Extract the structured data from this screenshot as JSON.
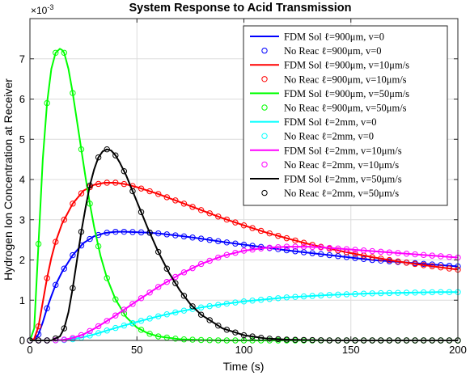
{
  "chart_data": {
    "type": "line",
    "title": "System Response to Acid Transmission",
    "xlabel": "Time (s)",
    "ylabel": "Hydrogen Ion Concentration at Receiver",
    "xlim": [
      0,
      200
    ],
    "ylim": [
      0,
      8
    ],
    "y_exponent_label": "×10",
    "y_exponent_power": "-3",
    "x_ticks": [
      "0",
      "50",
      "100",
      "150",
      "200"
    ],
    "y_ticks": [
      "0",
      "1",
      "2",
      "3",
      "4",
      "5",
      "6",
      "7"
    ],
    "grid": true,
    "legend_position": "top-right",
    "marker_step_s": 4,
    "series": [
      {
        "name": "FDM Sol ℓ=900μm, v=0",
        "marker_name": "No Reac ℓ=900μm, v=0",
        "color": "#0000ff",
        "x": [
          0,
          2,
          4,
          6,
          8,
          10,
          12,
          15,
          20,
          25,
          30,
          35,
          40,
          45,
          50,
          55,
          60,
          70,
          80,
          90,
          100,
          110,
          120,
          130,
          140,
          150,
          160,
          170,
          180,
          190,
          200
        ],
        "y": [
          0,
          0.02,
          0.15,
          0.45,
          0.8,
          1.1,
          1.38,
          1.7,
          2.12,
          2.42,
          2.59,
          2.67,
          2.7,
          2.7,
          2.69,
          2.68,
          2.66,
          2.6,
          2.53,
          2.45,
          2.38,
          2.31,
          2.24,
          2.18,
          2.12,
          2.06,
          2.0,
          1.96,
          1.92,
          1.88,
          1.84
        ]
      },
      {
        "name": "FDM Sol ℓ=900μm, v=10μm/s",
        "marker_name": "No Reac ℓ=900μm, v=10μm/s",
        "color": "#ff0000",
        "x": [
          0,
          2,
          4,
          6,
          8,
          10,
          12,
          15,
          20,
          25,
          30,
          35,
          40,
          45,
          50,
          60,
          70,
          80,
          90,
          100,
          110,
          120,
          130,
          140,
          150,
          160,
          170,
          180,
          190,
          200
        ],
        "y": [
          0,
          0.04,
          0.35,
          0.95,
          1.55,
          2.05,
          2.45,
          2.9,
          3.4,
          3.72,
          3.87,
          3.92,
          3.92,
          3.88,
          3.81,
          3.64,
          3.44,
          3.24,
          3.04,
          2.86,
          2.69,
          2.54,
          2.4,
          2.28,
          2.17,
          2.07,
          1.98,
          1.9,
          1.83,
          1.76
        ]
      },
      {
        "name": "FDM Sol ℓ=900μm, v=50μm/s",
        "marker_name": "No Reac ℓ=900μm, v=50μm/s",
        "color": "#00ff00",
        "x": [
          0,
          2,
          4,
          6,
          8,
          10,
          12,
          14,
          15,
          16,
          18,
          20,
          22,
          24,
          26,
          28,
          30,
          33,
          36,
          40,
          45,
          50,
          55,
          60,
          70,
          80,
          90,
          100,
          120,
          140,
          160,
          180,
          200
        ],
        "y": [
          0,
          0.3,
          2.4,
          4.5,
          5.9,
          6.75,
          7.15,
          7.25,
          7.22,
          7.15,
          6.75,
          6.15,
          5.45,
          4.75,
          4.05,
          3.4,
          2.82,
          2.1,
          1.55,
          1.02,
          0.58,
          0.32,
          0.18,
          0.1,
          0.03,
          0.01,
          0,
          0,
          0,
          0,
          0,
          0,
          0
        ]
      },
      {
        "name": "FDM Sol ℓ=2mm, v=0",
        "marker_name": "No Reac ℓ=2mm, v=0",
        "color": "#00ffff",
        "x": [
          0,
          10,
          15,
          20,
          25,
          30,
          35,
          40,
          50,
          60,
          70,
          80,
          90,
          100,
          110,
          120,
          130,
          140,
          150,
          160,
          170,
          180,
          190,
          200
        ],
        "y": [
          0,
          0,
          0.005,
          0.03,
          0.08,
          0.15,
          0.23,
          0.31,
          0.46,
          0.6,
          0.72,
          0.82,
          0.9,
          0.97,
          1.02,
          1.07,
          1.1,
          1.13,
          1.15,
          1.17,
          1.18,
          1.19,
          1.2,
          1.2
        ]
      },
      {
        "name": "FDM Sol ℓ=2mm, v=10μm/s",
        "marker_name": "No Reac ℓ=2mm, v=10μm/s",
        "color": "#ff00ff",
        "x": [
          0,
          10,
          15,
          20,
          25,
          30,
          35,
          40,
          50,
          60,
          70,
          80,
          90,
          100,
          110,
          120,
          130,
          140,
          150,
          160,
          170,
          180,
          190,
          200
        ],
        "y": [
          0,
          0,
          0.01,
          0.06,
          0.15,
          0.29,
          0.45,
          0.62,
          0.98,
          1.33,
          1.64,
          1.9,
          2.1,
          2.23,
          2.3,
          2.33,
          2.33,
          2.3,
          2.26,
          2.22,
          2.18,
          2.14,
          2.1,
          2.06
        ]
      },
      {
        "name": "FDM Sol ℓ=2mm, v=50μm/s",
        "marker_name": "No Reac ℓ=2mm, v=50μm/s",
        "color": "#000000",
        "x": [
          0,
          10,
          14,
          16,
          18,
          20,
          22,
          24,
          26,
          28,
          30,
          32,
          34,
          36,
          38,
          40,
          42,
          45,
          50,
          55,
          60,
          65,
          70,
          75,
          80,
          90,
          100,
          110,
          120,
          140,
          160,
          180,
          200
        ],
        "y": [
          0,
          0,
          0.1,
          0.3,
          0.7,
          1.3,
          2.0,
          2.7,
          3.3,
          3.85,
          4.25,
          4.55,
          4.7,
          4.75,
          4.72,
          4.6,
          4.42,
          4.1,
          3.45,
          2.8,
          2.2,
          1.68,
          1.25,
          0.9,
          0.64,
          0.3,
          0.13,
          0.05,
          0.02,
          0,
          0,
          0,
          0
        ]
      }
    ]
  }
}
